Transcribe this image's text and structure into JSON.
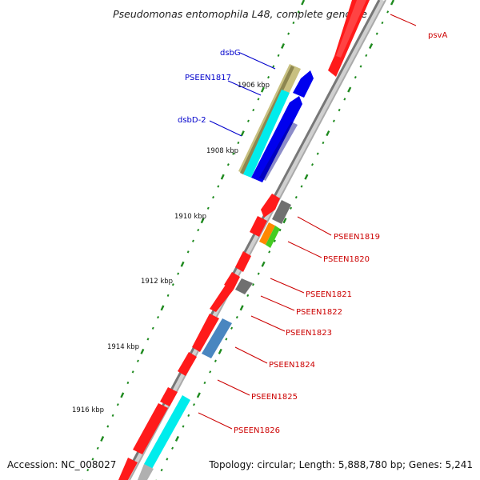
{
  "title": "Pseudomonas entomophila L48, complete genome",
  "footer": {
    "accession": "Accession: NC_008027",
    "topology": "Topology: circular; Length: 5,888,780 bp; Genes: 5,241"
  },
  "ticks": [
    "1906 kbp",
    "1908 kbp",
    "1910 kbp",
    "1912 kbp",
    "1914 kbp",
    "1916 kbp"
  ],
  "labels": {
    "psvA": "psvA",
    "dsbG": "dsbG",
    "PSEEN1817": "PSEEN1817",
    "dsbD_2": "dsbD-2",
    "PSEEN1819": "PSEEN1819",
    "PSEEN1820": "PSEEN1820",
    "PSEEN1821": "PSEEN1821",
    "PSEEN1822": "PSEEN1822",
    "PSEEN1823": "PSEEN1823",
    "PSEEN1824": "PSEEN1824",
    "PSEEN1825": "PSEEN1825",
    "PSEEN1826": "PSEEN1826"
  },
  "colors": {
    "forward_gene": "#ff0000",
    "reverse_gene": "#0000ee",
    "cyan_gene": "#00eeee",
    "olive_gene": "#c8c080",
    "grey_gene": "#707070",
    "orange_gene": "#ff8800",
    "green_gene": "#44cc22",
    "steelblue_gene": "#4a86c0",
    "backbone": "#888888",
    "tick_dots": "#1e8a1e",
    "label_red": "#cc0000",
    "label_blue": "#0000cc"
  }
}
